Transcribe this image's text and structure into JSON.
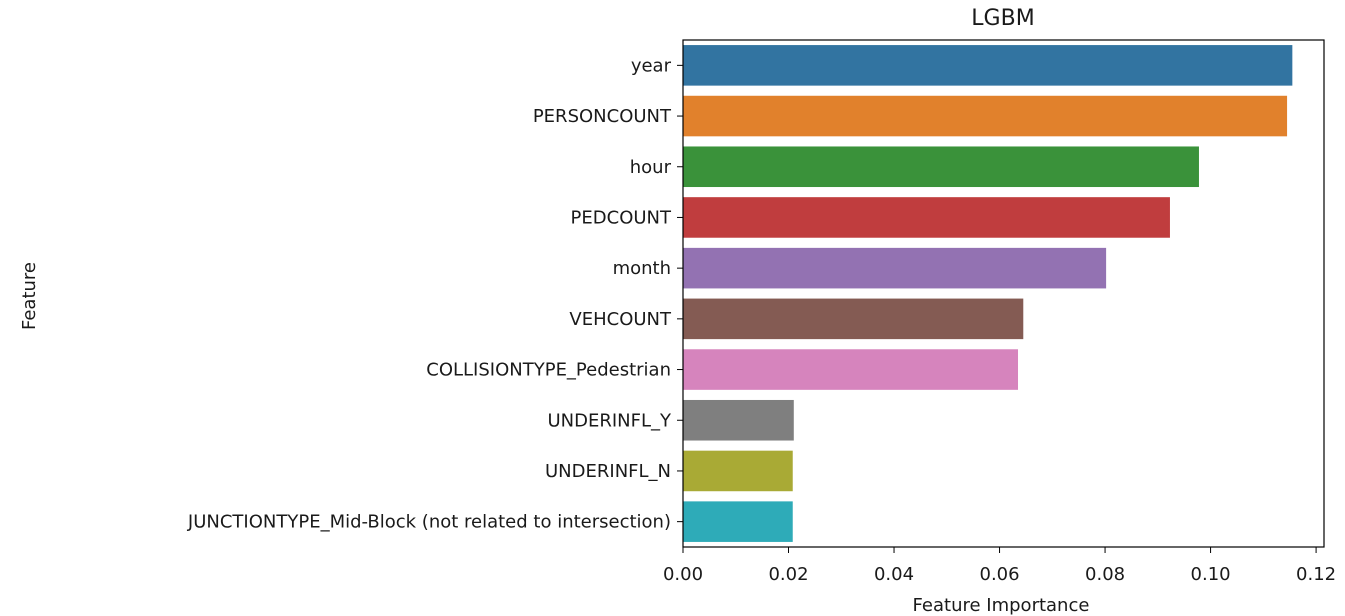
{
  "chart_data": {
    "type": "bar",
    "orientation": "horizontal",
    "title": "LGBM",
    "xlabel": "Feature Importance",
    "ylabel": "Feature",
    "xlim": [
      0.0,
      0.1215
    ],
    "xticks": [
      0.0,
      0.02,
      0.04,
      0.06,
      0.08,
      0.1,
      0.12
    ],
    "xtick_labels": [
      "0.00",
      "0.02",
      "0.04",
      "0.06",
      "0.08",
      "0.10",
      "0.12"
    ],
    "grid": false,
    "categories": [
      "year",
      "PERSONCOUNT",
      "hour",
      "PEDCOUNT",
      "month",
      "VEHCOUNT",
      "COLLISIONTYPE_Pedestrian",
      "UNDERINFL_Y",
      "UNDERINFL_N",
      "JUNCTIONTYPE_Mid-Block (not related to intersection)"
    ],
    "values": [
      0.1155,
      0.1145,
      0.0978,
      0.0923,
      0.0802,
      0.0645,
      0.0635,
      0.021,
      0.0208,
      0.0208
    ],
    "colors": [
      "#3274a1",
      "#e1812c",
      "#3a923a",
      "#c03d3e",
      "#9372b2",
      "#845b53",
      "#d684bd",
      "#7f7f7f",
      "#a9aa35",
      "#2eabb8"
    ]
  }
}
